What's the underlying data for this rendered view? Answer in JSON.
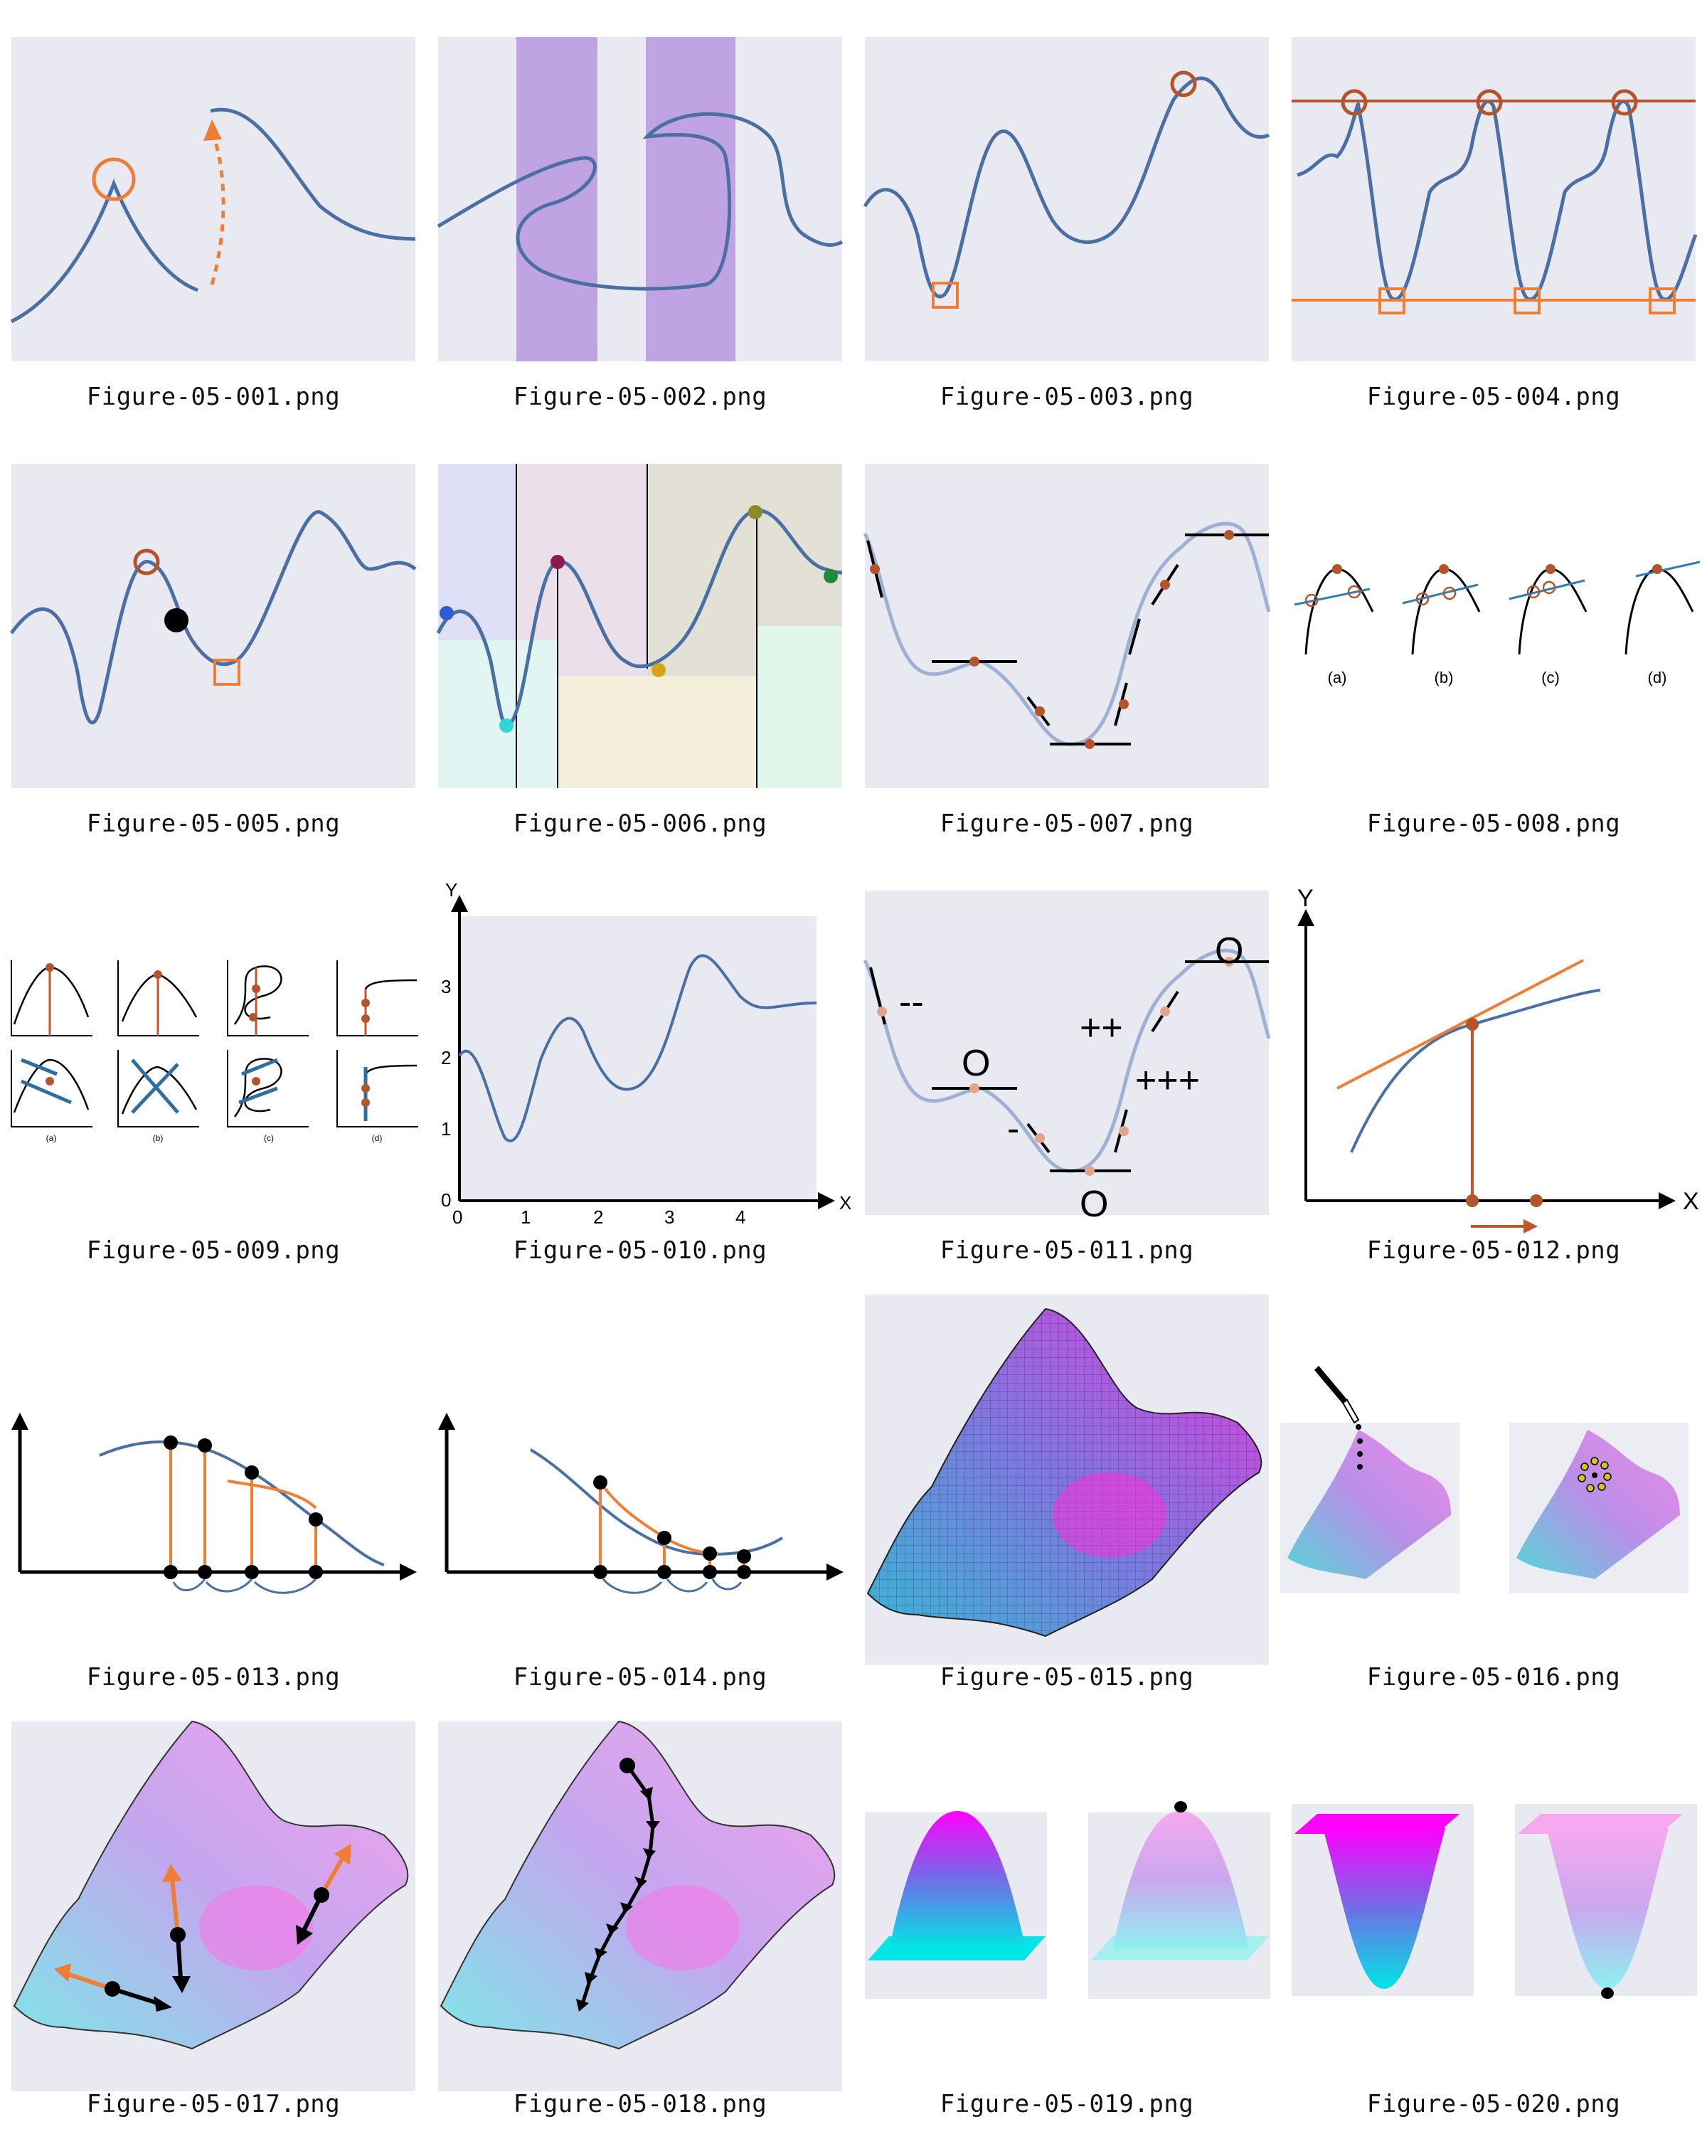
{
  "colors": {
    "panel_bg": "#e9e9f2",
    "curve": "#4a6fa5",
    "orange": "#ef7d34",
    "rust": "#c0562a",
    "purple": "#bfa3e3"
  },
  "figures": [
    {
      "file": "Figure-05-001.png"
    },
    {
      "file": "Figure-05-002.png"
    },
    {
      "file": "Figure-05-003.png"
    },
    {
      "file": "Figure-05-004.png"
    },
    {
      "file": "Figure-05-005.png"
    },
    {
      "file": "Figure-05-006.png"
    },
    {
      "file": "Figure-05-007.png"
    },
    {
      "file": "Figure-05-008.png",
      "labels": [
        "(a)",
        "(b)",
        "(c)",
        "(d)"
      ]
    },
    {
      "file": "Figure-05-009.png",
      "labels": [
        "(a)",
        "(b)",
        "(c)",
        "(d)"
      ]
    },
    {
      "file": "Figure-05-010.png",
      "axis": {
        "x": "X",
        "y": "Y",
        "xticks": [
          "0",
          "1",
          "2",
          "3",
          "4"
        ],
        "yticks": [
          "0",
          "1",
          "2",
          "3"
        ]
      }
    },
    {
      "file": "Figure-05-011.png",
      "marks": [
        "--",
        "O",
        "-",
        "O",
        "++",
        "O",
        "+++"
      ]
    },
    {
      "file": "Figure-05-012.png",
      "axis": {
        "x": "X",
        "y": "Y"
      }
    },
    {
      "file": "Figure-05-013.png"
    },
    {
      "file": "Figure-05-014.png"
    },
    {
      "file": "Figure-05-015.png"
    },
    {
      "file": "Figure-05-016.png"
    },
    {
      "file": "Figure-05-017.png"
    },
    {
      "file": "Figure-05-018.png"
    },
    {
      "file": "Figure-05-019.png"
    },
    {
      "file": "Figure-05-020.png"
    }
  ]
}
